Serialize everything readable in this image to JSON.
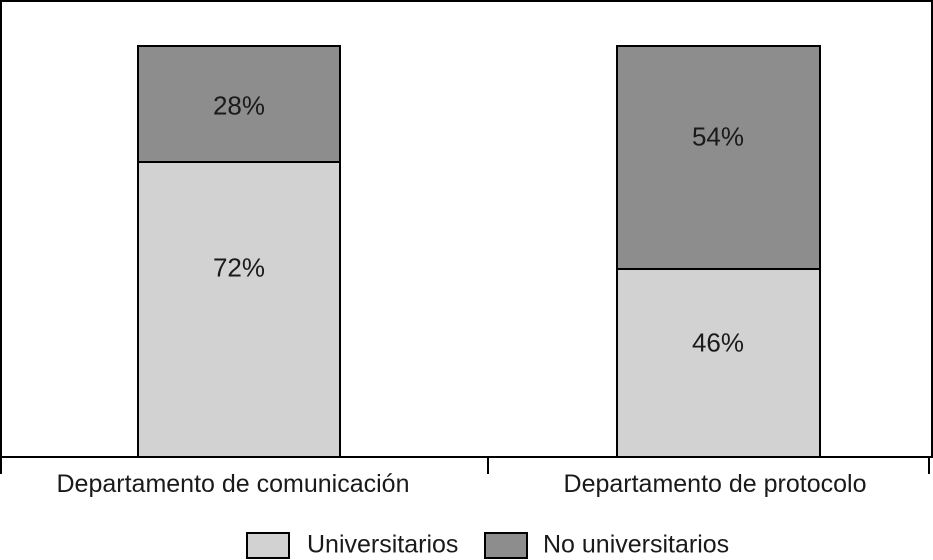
{
  "chart_data": {
    "type": "bar",
    "variant": "stacked-percentage-column",
    "title": "",
    "xlabel": "",
    "ylabel": "",
    "ylim": [
      0,
      100
    ],
    "grid": false,
    "legend_position": "bottom",
    "categories": [
      "Departamento de comunicación",
      "Departamento de protocolo"
    ],
    "series": [
      {
        "name": "Universitarios",
        "color": "#d2d2d2",
        "values": [
          72,
          46
        ],
        "labels": [
          "72%",
          "46%"
        ]
      },
      {
        "name": "No universitarios",
        "color": "#8d8d8d",
        "values": [
          28,
          54
        ],
        "labels": [
          "28%",
          "54%"
        ]
      }
    ]
  },
  "legend": {
    "items": [
      {
        "label": "Universitarios",
        "color": "#d2d2d2"
      },
      {
        "label": "No universitarios",
        "color": "#8d8d8d"
      }
    ]
  },
  "colors": {
    "axis": "#000000",
    "background": "#ffffff",
    "text": "#1a1a1a"
  }
}
